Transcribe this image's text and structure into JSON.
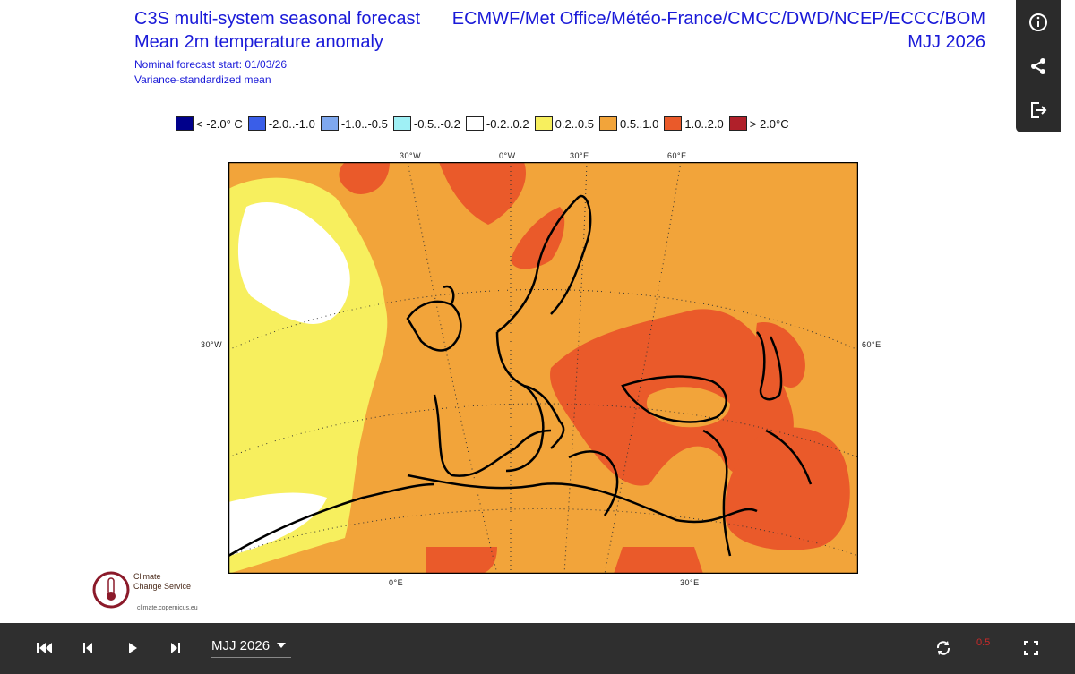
{
  "header": {
    "title_line1": "C3S multi-system seasonal forecast",
    "title_line2": "Mean 2m temperature anomaly",
    "subtitle_line1": "Nominal forecast start: 01/03/26",
    "subtitle_line2": "Variance-standardized mean",
    "systems": "ECMWF/Met Office/Météo-France/CMCC/DWD/NCEP/ECCC/BOM",
    "period": "MJJ 2026"
  },
  "legend": {
    "items": [
      {
        "label": "< -2.0° C",
        "color": "#00008b"
      },
      {
        "label": "-2.0..-1.0",
        "color": "#3a5ee8"
      },
      {
        "label": "-1.0..-0.5",
        "color": "#7fa8ee"
      },
      {
        "label": "-0.5..-0.2",
        "color": "#9ff0f5"
      },
      {
        "label": "-0.2..0.2",
        "color": "#ffffff"
      },
      {
        "label": "0.2..0.5",
        "color": "#f7ef5e"
      },
      {
        "label": "0.5..1.0",
        "color": "#f2a43a"
      },
      {
        "label": "1.0..2.0",
        "color": "#ea5a2a"
      },
      {
        "label": "> 2.0°C",
        "color": "#b0202a"
      }
    ]
  },
  "map": {
    "axis_labels": {
      "top": [
        "30°W",
        "0°W",
        "30°E",
        "60°E"
      ],
      "left": "30°W",
      "right": "60°E",
      "bottom": [
        "0°E",
        "30°E"
      ]
    }
  },
  "logo": {
    "line1": "Climate",
    "line2": "Change Service",
    "url": "climate.copernicus.eu"
  },
  "side_panel": {
    "info_icon": "info-icon",
    "share_icon": "share-icon",
    "export_icon": "export-icon"
  },
  "player": {
    "selected_period": "MJJ 2026",
    "speed": "0.5",
    "icons": [
      "skip-first-icon",
      "step-back-icon",
      "play-icon",
      "step-forward-icon",
      "loop-icon",
      "fullscreen-icon"
    ]
  }
}
